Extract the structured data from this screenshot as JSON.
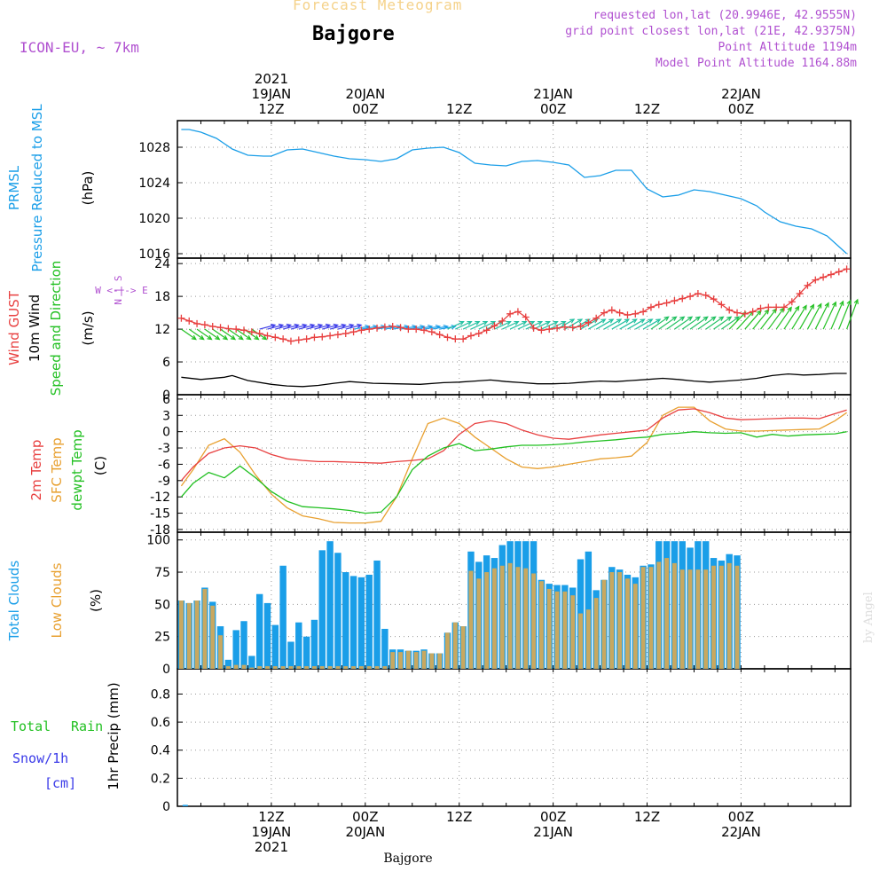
{
  "header": {
    "title": "Forecast Meteogram",
    "location": "Bajgore",
    "model": "ICON-EU, ~ 7km",
    "requested": "requested lon,lat (20.9946E, 42.9555N)",
    "gridpoint": "grid point closest lon,lat (21E, 42.9375N)",
    "point_alt": "Point Altitude 1194m",
    "model_alt": "Model Point Altitude 1164.88m",
    "footer_location": "Bajgore",
    "watermark": "by Angel"
  },
  "time_axis": {
    "top_labels": [
      {
        "hours": 12,
        "lines": [
          "2021",
          "19JAN",
          "12Z"
        ]
      },
      {
        "hours": 24,
        "lines": [
          "20JAN",
          "00Z"
        ]
      },
      {
        "hours": 36,
        "lines": [
          "12Z"
        ]
      },
      {
        "hours": 48,
        "lines": [
          "21JAN",
          "00Z"
        ]
      },
      {
        "hours": 60,
        "lines": [
          "12Z"
        ]
      },
      {
        "hours": 72,
        "lines": [
          "22JAN",
          "00Z"
        ]
      }
    ],
    "bottom_labels": [
      {
        "hours": 12,
        "lines": [
          "12Z",
          "19JAN",
          "2021"
        ]
      },
      {
        "hours": 24,
        "lines": [
          "00Z",
          "20JAN"
        ]
      },
      {
        "hours": 36,
        "lines": [
          "12Z"
        ]
      },
      {
        "hours": 48,
        "lines": [
          "00Z",
          "21JAN"
        ]
      },
      {
        "hours": 60,
        "lines": [
          "12Z"
        ]
      },
      {
        "hours": 72,
        "lines": [
          "00Z",
          "22JAN"
        ]
      }
    ]
  },
  "panel_labels": {
    "pressure": {
      "series": [
        "PRMSL",
        "Pressure Reduced to MSL"
      ],
      "unit": "(hPa)"
    },
    "wind": {
      "series": [
        "Wind GUST",
        "10m Wind",
        "Speed and Direction"
      ],
      "unit": "(m/s)",
      "compass": [
        "W <-|-> E",
        "N",
        "|",
        "S"
      ]
    },
    "temp": {
      "series": [
        "2m Temp",
        "SFC Temp",
        "dewpt Temp"
      ],
      "unit": "(C)"
    },
    "clouds": {
      "series": [
        "Total Clouds",
        "Low Clouds"
      ],
      "unit": "(%)"
    },
    "precip": {
      "series": [
        "Total",
        "Rain",
        "Snow/1h",
        "[cm]"
      ],
      "unit": "1hr Precip (mm)"
    }
  },
  "colors": {
    "pressure": "#1a9ee8",
    "gust": "#e84040",
    "wind": "#000000",
    "temp2m": "#e84040",
    "sfc": "#e8a030",
    "dewpt": "#22c022",
    "total_clouds": "#1a9ee8",
    "low_clouds": "#c8a860",
    "rain": "#22c022",
    "snow": "#3a3ae8",
    "compass": "#b050d0",
    "grid": "#999999",
    "title": "#f5d28a",
    "meta": "#b050d0"
  },
  "chart_data": [
    {
      "type": "line",
      "name": "pressure",
      "ylabel": "Pressure Reduced to MSL (hPa)",
      "ylim": [
        1015.5,
        1031
      ],
      "yticks": [
        1016,
        1020,
        1024,
        1028
      ],
      "xlim_hours": [
        0,
        86
      ],
      "series": [
        {
          "name": "PRMSL",
          "color": "#1a9ee8",
          "x": [
            0.5,
            1.5,
            3,
            5,
            7,
            9,
            11,
            12,
            14,
            16,
            18,
            20,
            22,
            24,
            26,
            28,
            30,
            32,
            34,
            36,
            38,
            40,
            42,
            44,
            46,
            48,
            50,
            52,
            54,
            56,
            58,
            60,
            62,
            64,
            66,
            68,
            70,
            72,
            74,
            75,
            77,
            79,
            81,
            83,
            85.5
          ],
          "y": [
            1030,
            1030,
            1029.7,
            1029,
            1027.8,
            1027.1,
            1027,
            1027,
            1027.7,
            1027.8,
            1027.4,
            1027,
            1026.7,
            1026.6,
            1026.4,
            1026.7,
            1027.7,
            1027.9,
            1028,
            1027.4,
            1026.2,
            1026,
            1025.9,
            1026.4,
            1026.5,
            1026.3,
            1026,
            1024.6,
            1024.8,
            1025.4,
            1025.4,
            1023.3,
            1022.4,
            1022.6,
            1023.2,
            1023,
            1022.6,
            1022.2,
            1021.4,
            1020.7,
            1019.6,
            1019.1,
            1018.8,
            1018,
            1016
          ]
        }
      ]
    },
    {
      "type": "line",
      "name": "wind",
      "ylabel": "10m Wind (m/s)",
      "ylim": [
        0,
        25
      ],
      "yticks": [
        0,
        6,
        12,
        18,
        24
      ],
      "xlim_hours": [
        0,
        86
      ],
      "series": [
        {
          "name": "Wind GUST",
          "color": "#e84040",
          "marker": "+",
          "x": [
            0.5,
            1.5,
            2.5,
            3.5,
            4.5,
            5.5,
            6.5,
            7.5,
            8.5,
            9.5,
            10.5,
            11.5,
            12.5,
            13.5,
            14.5,
            15.5,
            16.5,
            17.5,
            18.5,
            19.5,
            20.5,
            21.5,
            22.5,
            23.5,
            24.5,
            25.5,
            26.5,
            27.5,
            28.5,
            29.5,
            30.5,
            31.5,
            32.5,
            33.5,
            34.5,
            35.5,
            36.5,
            37.5,
            38.5,
            39.5,
            40.5,
            41.5,
            42.5,
            43.5,
            44.5,
            45.5,
            46.5,
            47.5,
            48.5,
            49.5,
            50.5,
            51.5,
            52.5,
            53.5,
            54.5,
            55.5,
            56.5,
            57.5,
            58.5,
            59.5,
            60.5,
            61.5,
            62.5,
            63.5,
            64.5,
            65.5,
            66.5,
            67.5,
            68.5,
            69.5,
            70.5,
            71.5,
            72.5,
            73.5,
            74.5,
            75.5,
            76.5,
            77.5,
            78.5,
            79.5,
            80.5,
            81.5,
            82.5,
            83.5,
            84.5,
            85.5
          ],
          "y": [
            14,
            13.5,
            13,
            12.8,
            12.5,
            12.3,
            12.1,
            12,
            11.8,
            11.5,
            11.2,
            10.8,
            10.5,
            10.2,
            9.8,
            10,
            10.2,
            10.5,
            10.6,
            10.8,
            11,
            11.2,
            11.5,
            11.8,
            12,
            12.2,
            12.4,
            12.5,
            12.3,
            12,
            12,
            11.8,
            11.5,
            11,
            10.5,
            10.2,
            10.2,
            10.8,
            11.2,
            11.8,
            12.6,
            13.5,
            14.8,
            15.2,
            14.2,
            12.2,
            11.8,
            12,
            12.2,
            12.4,
            12.3,
            12.5,
            13.2,
            14,
            15,
            15.5,
            15,
            14.6,
            14.8,
            15.2,
            16,
            16.5,
            16.8,
            17.2,
            17.6,
            18,
            18.5,
            18.2,
            17.5,
            16.5,
            15.5,
            15,
            14.8,
            15.2,
            15.8,
            16,
            16,
            16,
            17,
            18.5,
            20,
            21,
            21.5,
            22,
            22.5,
            23
          ]
        },
        {
          "name": "10m Wind",
          "color": "#000000",
          "x": [
            0.5,
            3,
            6,
            7,
            9,
            12,
            14,
            16,
            18,
            20,
            22,
            25,
            28,
            31,
            34,
            36,
            38,
            40,
            42,
            44,
            46,
            48,
            50,
            52,
            54,
            56,
            58,
            60,
            62,
            64,
            66,
            68,
            70,
            72,
            74,
            76,
            78,
            80,
            82,
            84,
            85.5
          ],
          "y": [
            3.2,
            2.8,
            3.2,
            3.5,
            2.6,
            1.9,
            1.6,
            1.5,
            1.7,
            2.1,
            2.4,
            2.1,
            2.0,
            1.9,
            2.2,
            2.3,
            2.5,
            2.7,
            2.4,
            2.2,
            2.0,
            2.0,
            2.1,
            2.3,
            2.5,
            2.4,
            2.6,
            2.8,
            3.0,
            2.8,
            2.5,
            2.3,
            2.5,
            2.7,
            3.0,
            3.5,
            3.8,
            3.6,
            3.7,
            3.9,
            3.9
          ]
        }
      ],
      "wind_arrows": {
        "x_start_hours": 0.5,
        "x_step_hours": 1,
        "count": 86
      }
    },
    {
      "type": "line",
      "name": "temperature",
      "ylabel": "(C)",
      "ylim": [
        -18.5,
        6.8
      ],
      "yticks": [
        -18,
        -15,
        -12,
        -9,
        -6,
        -3,
        0,
        3,
        6
      ],
      "xlim_hours": [
        0,
        86
      ],
      "series": [
        {
          "name": "2m Temp",
          "color": "#e84040",
          "x": [
            0.5,
            2,
            4,
            6,
            8,
            10,
            12,
            14,
            16,
            18,
            20,
            22,
            24,
            26,
            28,
            30,
            32,
            34,
            36,
            38,
            40,
            42,
            44,
            46,
            48,
            50,
            52,
            54,
            56,
            58,
            60,
            62,
            64,
            66,
            68,
            70,
            72,
            74,
            76,
            78,
            80,
            82,
            84,
            85.5
          ],
          "y": [
            -9,
            -6.5,
            -4,
            -3,
            -2.6,
            -3,
            -4.2,
            -5,
            -5.3,
            -5.5,
            -5.5,
            -5.6,
            -5.7,
            -5.8,
            -5.5,
            -5.3,
            -5,
            -3.5,
            -0.5,
            1.5,
            2,
            1.5,
            0.3,
            -0.6,
            -1.2,
            -1.4,
            -1,
            -0.6,
            -0.3,
            0,
            0.3,
            2.5,
            4,
            4.2,
            3.5,
            2.5,
            2.2,
            2.3,
            2.4,
            2.5,
            2.5,
            2.4,
            3.3,
            4.0
          ]
        },
        {
          "name": "SFC Temp",
          "color": "#e8a030",
          "x": [
            0.5,
            2,
            4,
            6,
            8,
            10,
            12,
            14,
            16,
            18,
            20,
            22,
            24,
            26,
            28,
            30,
            32,
            34,
            36,
            38,
            40,
            42,
            44,
            46,
            48,
            50,
            52,
            54,
            56,
            58,
            60,
            62,
            64,
            66,
            68,
            70,
            72,
            74,
            76,
            78,
            80,
            82,
            84,
            85.5
          ],
          "y": [
            -10,
            -7,
            -2.5,
            -1.3,
            -3.8,
            -8,
            -11.5,
            -14,
            -15.5,
            -16,
            -16.7,
            -16.8,
            -16.8,
            -16.5,
            -12,
            -5,
            1.5,
            2.5,
            1.5,
            -1,
            -3,
            -5,
            -6.5,
            -6.8,
            -6.5,
            -6,
            -5.5,
            -5,
            -4.8,
            -4.5,
            -2,
            3,
            4.5,
            4.5,
            2,
            0.5,
            0.1,
            0.1,
            0.2,
            0.3,
            0.4,
            0.5,
            2,
            3.5
          ]
        },
        {
          "name": "dewpt Temp",
          "color": "#22c022",
          "x": [
            0.5,
            2,
            4,
            6,
            8,
            10,
            12,
            14,
            16,
            18,
            20,
            22,
            24,
            26,
            28,
            30,
            32,
            34,
            36,
            38,
            40,
            42,
            44,
            46,
            48,
            50,
            52,
            54,
            56,
            58,
            60,
            62,
            64,
            66,
            68,
            70,
            72,
            74,
            76,
            78,
            80,
            82,
            84,
            85.5
          ],
          "y": [
            -12,
            -9.5,
            -7.5,
            -8.5,
            -6.3,
            -8.5,
            -11,
            -12.8,
            -13.8,
            -14,
            -14.2,
            -14.5,
            -15,
            -14.8,
            -12,
            -7,
            -4.5,
            -3,
            -2.2,
            -3.5,
            -3.2,
            -2.8,
            -2.5,
            -2.5,
            -2.4,
            -2.2,
            -1.9,
            -1.7,
            -1.5,
            -1.2,
            -1,
            -0.5,
            -0.3,
            0,
            -0.2,
            -0.3,
            -0.2,
            -1,
            -0.5,
            -0.8,
            -0.6,
            -0.5,
            -0.4,
            0
          ]
        }
      ]
    },
    {
      "type": "bar",
      "name": "clouds",
      "ylabel": "(%)",
      "ylim": [
        0,
        106
      ],
      "yticks": [
        0,
        25,
        50,
        75,
        100
      ],
      "x_start_hours": 0.5,
      "x_step_hours": 1,
      "series": [
        {
          "name": "Total Clouds",
          "color": "#1a9ee8",
          "values": [
            53,
            51,
            53,
            63,
            52,
            33,
            7,
            30,
            37,
            10,
            58,
            51,
            34,
            80,
            21,
            36,
            25,
            38,
            92,
            99,
            90,
            75,
            72,
            71,
            73,
            84,
            31,
            15,
            15,
            14,
            14,
            15,
            12,
            12,
            28,
            36,
            33,
            91,
            83,
            88,
            86,
            96,
            99,
            99,
            99,
            99,
            69,
            66,
            65,
            65,
            63,
            85,
            91,
            61,
            69,
            79,
            77,
            73,
            71,
            80,
            81,
            99,
            99,
            99,
            99,
            94,
            99,
            99,
            86,
            84,
            89,
            88
          ],
          "values_note": "hourly"
        },
        {
          "name": "Low Clouds",
          "color": "#c8a860",
          "values": [
            53,
            51,
            53,
            62,
            49,
            26,
            2,
            3,
            3,
            1,
            2,
            2,
            2,
            2,
            2,
            2,
            2,
            2,
            2,
            2,
            2,
            2,
            2,
            2,
            2,
            2,
            2,
            13,
            13,
            14,
            13,
            14,
            12,
            12,
            28,
            36,
            33,
            76,
            70,
            75,
            78,
            80,
            82,
            79,
            78,
            74,
            68,
            62,
            60,
            60,
            57,
            43,
            46,
            55,
            69,
            75,
            75,
            70,
            66,
            79,
            79,
            83,
            86,
            82,
            77,
            77,
            77,
            77,
            80,
            80,
            82,
            80
          ],
          "values_note": "hourly"
        }
      ]
    },
    {
      "type": "bar",
      "name": "precip",
      "ylabel": "1hr Precip (mm)",
      "ylim": [
        0,
        0.98
      ],
      "yticks": [
        0,
        0.2,
        0.4,
        0.6,
        0.8
      ],
      "series": [
        {
          "name": "Total",
          "color": "#1a9ee8",
          "x": [
            1
          ],
          "values": [
            0.01
          ]
        }
      ]
    }
  ]
}
